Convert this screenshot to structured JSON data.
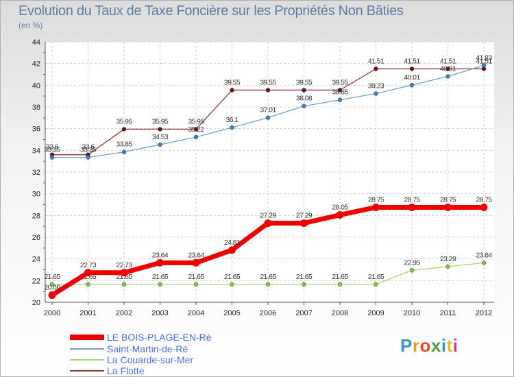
{
  "chart_data": {
    "type": "line",
    "title": "Evolution du Taux de Taxe Foncière sur les Propriétés Non Bâties",
    "subtitle": "(en %)",
    "x": [
      "2000",
      "2001",
      "2002",
      "2003",
      "2004",
      "2005",
      "2006",
      "2007",
      "2008",
      "2009",
      "2010",
      "2011",
      "2012"
    ],
    "ylim": [
      20,
      44
    ],
    "yticks": [
      "20",
      "22",
      "24",
      "26",
      "28",
      "30",
      "32",
      "34",
      "36",
      "38",
      "40",
      "42",
      "44"
    ],
    "grid": true,
    "legend_position": "bottom-left",
    "series": [
      {
        "name": "La Flotte",
        "color": "#8b3a3a",
        "marker": "#6a1010",
        "width": 1.3,
        "values": [
          33.6,
          33.6,
          35.95,
          35.95,
          35.95,
          39.55,
          39.55,
          39.55,
          39.55,
          41.51,
          41.51,
          41.51,
          41.51
        ],
        "labels": [
          "33.6",
          "33.6",
          "35.95",
          "35.95",
          "35.95",
          "39.55",
          "39.55",
          "39.55",
          "39.55",
          "41.51",
          "41.51",
          "41.51",
          "41.51"
        ]
      },
      {
        "name": "Saint-Martin-de-Ré",
        "color": "#6fa0cc",
        "marker": "#3a7fc8",
        "width": 1.3,
        "values": [
          33.35,
          33.35,
          33.85,
          34.53,
          35.22,
          36.1,
          37.01,
          38.08,
          38.65,
          39.23,
          40.01,
          40.81,
          41.83
        ],
        "labels": [
          "33.35",
          "33.35",
          "33.85",
          "34.53",
          "35.22",
          "36.1",
          "37.01",
          "38.08",
          "38.65",
          "39.23",
          "40.01",
          "40.81",
          "41.83"
        ]
      },
      {
        "name": "La Couarde-sur-Mer",
        "color": "#a6d870",
        "marker": "#7cc23a",
        "width": 1.3,
        "values": [
          21.65,
          21.65,
          21.65,
          21.65,
          21.65,
          21.65,
          21.65,
          21.65,
          21.65,
          21.65,
          22.95,
          23.29,
          23.64
        ],
        "labels": [
          "21.65",
          "21.65",
          "21.65",
          "21.65",
          "21.65",
          "21.65",
          "21.65",
          "21.65",
          "21.65",
          "21.65",
          "22.95",
          "23.29",
          "23.64"
        ]
      },
      {
        "name": "LE BOIS-PLAGE-EN-Ré",
        "color": "#ee0000",
        "marker": "#ee0000",
        "width": 7,
        "values": [
          20.66,
          22.73,
          22.73,
          23.64,
          23.64,
          24.81,
          27.29,
          27.29,
          28.05,
          28.75,
          28.75,
          28.75,
          28.75
        ],
        "labels": [
          "20.66",
          "22.73",
          "22.73",
          "23.64",
          "23.64",
          "24.81",
          "27.29",
          "27.29",
          "28.05",
          "28.75",
          "28.75",
          "28.75",
          "28.75"
        ]
      }
    ],
    "legend": [
      "LE BOIS-PLAGE-EN-Ré",
      "Saint-Martin-de-Ré",
      "La Couarde-sur-Mer",
      "La Flotte"
    ]
  },
  "brand": {
    "logo_text": "Proxiti"
  }
}
